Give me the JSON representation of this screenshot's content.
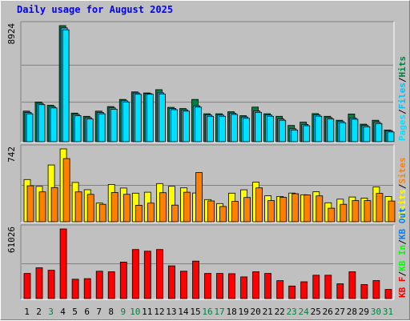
{
  "title": "Daily usage for August 2025",
  "colors": {
    "hits": "#008040",
    "files": "#00c0ff",
    "pages": "#00e0ff",
    "visits": "#ffff00",
    "sites": "#ff8000",
    "kbin": "#00ff00",
    "kbout": "#0080ff",
    "kbf": "#ff0000",
    "weekend_label": "#008040",
    "weekday_label": "#000000"
  },
  "chart_data": [
    {
      "type": "bar",
      "panel": "hits",
      "max_label": "8924",
      "legend": [
        "Pages",
        "/",
        "Files",
        "/",
        "Hits"
      ],
      "categories": [
        "1",
        "2",
        "3",
        "4",
        "5",
        "6",
        "7",
        "8",
        "9",
        "10",
        "11",
        "12",
        "13",
        "14",
        "15",
        "16",
        "17",
        "18",
        "19",
        "20",
        "21",
        "22",
        "23",
        "24",
        "25",
        "26",
        "27",
        "28",
        "29",
        "30",
        "31"
      ],
      "ylim": [
        0,
        8924
      ],
      "series": [
        {
          "name": "Hits",
          "values": [
            2350,
            3050,
            2800,
            8924,
            2200,
            1950,
            2350,
            2700,
            3250,
            3830,
            3750,
            4000,
            2640,
            2550,
            3250,
            2150,
            2150,
            2300,
            2000,
            2660,
            2150,
            1950,
            1250,
            1500,
            2160,
            1950,
            1650,
            2130,
            1350,
            1650,
            900
          ]
        },
        {
          "name": "Files",
          "values": [
            2250,
            2950,
            2700,
            8750,
            2100,
            1850,
            2250,
            2600,
            3150,
            3750,
            3700,
            3760,
            2560,
            2450,
            2760,
            2050,
            2050,
            2200,
            1900,
            2360,
            2050,
            1750,
            1000,
            1330,
            2060,
            1850,
            1550,
            1830,
            1250,
            1500,
            850
          ]
        },
        {
          "name": "Pages",
          "values": [
            2150,
            2850,
            2600,
            8600,
            2000,
            1750,
            2150,
            2500,
            3050,
            3650,
            3650,
            3660,
            2460,
            2350,
            2660,
            1950,
            1950,
            2100,
            1800,
            2260,
            1950,
            1650,
            900,
            1230,
            1960,
            1750,
            1450,
            1730,
            1150,
            1400,
            750
          ]
        }
      ]
    },
    {
      "type": "bar",
      "panel": "visits",
      "max_label": "742",
      "legend": [
        "Visits",
        "/",
        "Sites"
      ],
      "categories": [
        "1",
        "2",
        "3",
        "4",
        "5",
        "6",
        "7",
        "8",
        "9",
        "10",
        "11",
        "12",
        "13",
        "14",
        "15",
        "16",
        "17",
        "18",
        "19",
        "20",
        "21",
        "22",
        "23",
        "24",
        "25",
        "26",
        "27",
        "28",
        "29",
        "30",
        "31"
      ],
      "ylim": [
        0,
        742
      ],
      "series": [
        {
          "name": "Visits",
          "values": [
            430,
            360,
            578,
            742,
            400,
            326,
            190,
            380,
            343,
            291,
            301,
            389,
            361,
            345,
            293,
            226,
            185,
            291,
            325,
            403,
            264,
            258,
            292,
            275,
            305,
            193,
            230,
            252,
            240,
            355,
            257
          ]
        },
        {
          "name": "Sites",
          "values": [
            366,
            304,
            348,
            643,
            304,
            279,
            178,
            298,
            280,
            168,
            190,
            296,
            170,
            301,
            501,
            212,
            156,
            207,
            247,
            345,
            215,
            249,
            285,
            272,
            263,
            138,
            178,
            215,
            215,
            289,
            211
          ]
        }
      ]
    },
    {
      "type": "bar",
      "panel": "kbytes",
      "max_label": "61026",
      "legend": [
        "KB F",
        "/",
        "KB In",
        "/",
        "KB Out"
      ],
      "categories": [
        "1",
        "2",
        "3",
        "4",
        "5",
        "6",
        "7",
        "8",
        "9",
        "10",
        "11",
        "12",
        "13",
        "14",
        "15",
        "16",
        "17",
        "18",
        "19",
        "20",
        "21",
        "22",
        "23",
        "24",
        "25",
        "26",
        "27",
        "28",
        "29",
        "30",
        "31"
      ],
      "ylim": [
        0,
        61026
      ],
      "series": [
        {
          "name": "KB F",
          "values": [
            22000,
            27000,
            24800,
            61026,
            17000,
            17500,
            24000,
            23500,
            32000,
            43000,
            41500,
            43000,
            28700,
            24000,
            32800,
            22000,
            22000,
            21800,
            19000,
            23500,
            22000,
            15700,
            11000,
            14700,
            20500,
            20500,
            13000,
            23500,
            12300,
            15800,
            8000
          ]
        }
      ]
    }
  ]
}
